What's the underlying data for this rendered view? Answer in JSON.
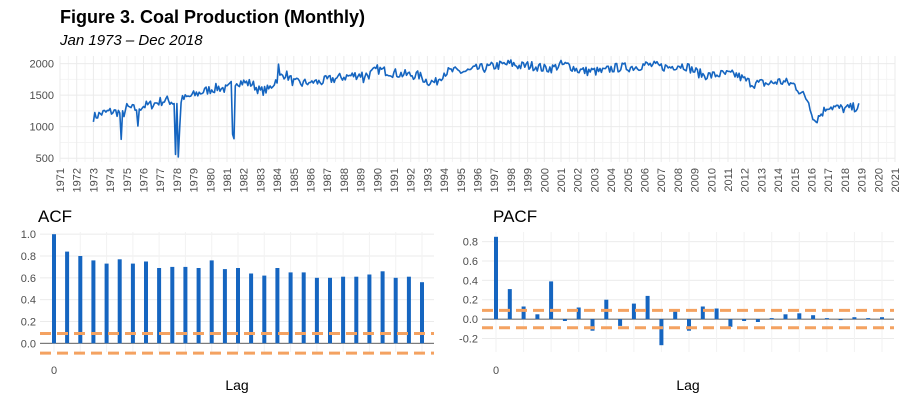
{
  "header": {
    "title": "Figure 3. Coal Production (Monthly)",
    "subtitle": "Jan 1973 – Dec 2018"
  },
  "colors": {
    "series": "#1565c0",
    "ci": "#f4a261",
    "grid": "#ebebeb",
    "axis_text": "#4d4d4d"
  },
  "chart_data": [
    {
      "type": "line",
      "title": "",
      "xlabel": "",
      "ylabel": "",
      "xlim": [
        1971,
        2021
      ],
      "ylim": [
        440,
        2120
      ],
      "x_ticks": [
        "1971",
        "1972",
        "1973",
        "1974",
        "1975",
        "1976",
        "1977",
        "1978",
        "1979",
        "1980",
        "1981",
        "1982",
        "1983",
        "1984",
        "1985",
        "1986",
        "1987",
        "1988",
        "1989",
        "1990",
        "1991",
        "1992",
        "1993",
        "1994",
        "1995",
        "1996",
        "1997",
        "1998",
        "1999",
        "2000",
        "2001",
        "2002",
        "2003",
        "2004",
        "2005",
        "2006",
        "2007",
        "2008",
        "2009",
        "2010",
        "2011",
        "2012",
        "2013",
        "2014",
        "2015",
        "2016",
        "2017",
        "2018",
        "2019",
        "2020",
        "2021"
      ],
      "y_ticks": [
        500,
        1000,
        1500,
        2000
      ],
      "grid": true,
      "x_start": 1973.0,
      "x_end": 2018.9,
      "anchors": [
        [
          1973.0,
          1150
        ],
        [
          1973.5,
          1210
        ],
        [
          1974.0,
          1240
        ],
        [
          1974.5,
          1230
        ],
        [
          1974.8,
          1200
        ],
        [
          1975.0,
          1300
        ],
        [
          1975.5,
          1280
        ],
        [
          1976.0,
          1330
        ],
        [
          1976.5,
          1350
        ],
        [
          1977.0,
          1400
        ],
        [
          1977.4,
          1420
        ],
        [
          1977.9,
          1380
        ],
        [
          1978.5,
          1450
        ],
        [
          1979.0,
          1500
        ],
        [
          1979.5,
          1550
        ],
        [
          1980.0,
          1590
        ],
        [
          1980.5,
          1620
        ],
        [
          1981.0,
          1590
        ],
        [
          1981.5,
          1720
        ],
        [
          1982.0,
          1700
        ],
        [
          1982.5,
          1680
        ],
        [
          1983.0,
          1560
        ],
        [
          1983.5,
          1590
        ],
        [
          1984.0,
          1760
        ],
        [
          1984.5,
          1840
        ],
        [
          1985.0,
          1700
        ],
        [
          1985.5,
          1680
        ],
        [
          1986.0,
          1720
        ],
        [
          1986.5,
          1700
        ],
        [
          1987.0,
          1740
        ],
        [
          1987.5,
          1760
        ],
        [
          1988.0,
          1790
        ],
        [
          1988.5,
          1810
        ],
        [
          1989.0,
          1830
        ],
        [
          1989.5,
          1820
        ],
        [
          1990.0,
          1910
        ],
        [
          1990.5,
          1880
        ],
        [
          1991.0,
          1850
        ],
        [
          1991.5,
          1830
        ],
        [
          1992.0,
          1820
        ],
        [
          1992.5,
          1810
        ],
        [
          1993.0,
          1720
        ],
        [
          1993.5,
          1700
        ],
        [
          1994.0,
          1860
        ],
        [
          1994.5,
          1880
        ],
        [
          1995.0,
          1870
        ],
        [
          1995.5,
          1880
        ],
        [
          1996.0,
          1920
        ],
        [
          1996.5,
          1930
        ],
        [
          1997.0,
          1960
        ],
        [
          1997.5,
          1980
        ],
        [
          1998.0,
          2000
        ],
        [
          1998.5,
          1960
        ],
        [
          1999.0,
          1970
        ],
        [
          1999.5,
          1960
        ],
        [
          2000.0,
          1920
        ],
        [
          2000.5,
          1930
        ],
        [
          2001.0,
          1980
        ],
        [
          2001.5,
          1970
        ],
        [
          2002.0,
          1900
        ],
        [
          2002.5,
          1880
        ],
        [
          2003.0,
          1880
        ],
        [
          2003.5,
          1870
        ],
        [
          2004.0,
          1920
        ],
        [
          2004.5,
          1940
        ],
        [
          2005.0,
          1940
        ],
        [
          2005.5,
          1950
        ],
        [
          2006.0,
          1980
        ],
        [
          2006.5,
          1970
        ],
        [
          2007.0,
          1950
        ],
        [
          2007.5,
          1940
        ],
        [
          2008.0,
          1980
        ],
        [
          2008.5,
          1960
        ],
        [
          2009.0,
          1880
        ],
        [
          2009.5,
          1820
        ],
        [
          2010.0,
          1810
        ],
        [
          2010.5,
          1830
        ],
        [
          2011.0,
          1830
        ],
        [
          2011.5,
          1820
        ],
        [
          2012.0,
          1740
        ],
        [
          2012.5,
          1680
        ],
        [
          2013.0,
          1690
        ],
        [
          2013.5,
          1680
        ],
        [
          2014.0,
          1720
        ],
        [
          2014.5,
          1700
        ],
        [
          2015.0,
          1660
        ],
        [
          2015.5,
          1500
        ],
        [
          2015.8,
          1420
        ],
        [
          2016.2,
          1080
        ],
        [
          2016.5,
          1180
        ],
        [
          2017.0,
          1330
        ],
        [
          2017.5,
          1300
        ],
        [
          2018.0,
          1280
        ],
        [
          2018.9,
          1320
        ]
      ],
      "spikes": [
        [
          1974.65,
          800
        ],
        [
          1975.7,
          1010
        ],
        [
          1977.9,
          560
        ],
        [
          1978.05,
          520
        ],
        [
          1978.2,
          980
        ],
        [
          1981.3,
          880
        ],
        [
          1981.45,
          810
        ],
        [
          1984.1,
          1990
        ],
        [
          1986.0,
          1700
        ],
        [
          1989.2,
          1700
        ]
      ]
    },
    {
      "type": "bar",
      "title": "ACF",
      "xlabel": "Lag",
      "ylabel": "",
      "x_ticks": [
        "0"
      ],
      "y_ticks": [
        "0.0",
        "0.2",
        "0.4",
        "0.6",
        "0.8",
        "1.0"
      ],
      "ylim": [
        -0.08,
        1.02
      ],
      "ci": 0.09,
      "grid": true,
      "values": [
        1.0,
        0.84,
        0.8,
        0.76,
        0.73,
        0.77,
        0.73,
        0.75,
        0.69,
        0.7,
        0.7,
        0.69,
        0.76,
        0.68,
        0.69,
        0.64,
        0.62,
        0.69,
        0.65,
        0.65,
        0.6,
        0.6,
        0.61,
        0.61,
        0.63,
        0.66,
        0.6,
        0.61,
        0.56
      ]
    },
    {
      "type": "bar",
      "title": "PACF",
      "xlabel": "Lag",
      "ylabel": "",
      "x_ticks": [
        "0"
      ],
      "y_ticks": [
        "-0.2",
        "0.0",
        "0.2",
        "0.4",
        "0.6",
        "0.8"
      ],
      "ylim": [
        -0.34,
        0.9
      ],
      "ci": 0.09,
      "grid": true,
      "values": [
        0.85,
        0.31,
        0.13,
        0.05,
        0.39,
        -0.02,
        0.12,
        -0.12,
        0.2,
        -0.07,
        0.16,
        0.24,
        -0.27,
        0.08,
        -0.12,
        0.13,
        0.11,
        -0.08,
        -0.02,
        -0.03,
        0.01,
        0.05,
        0.06,
        0.04,
        0.01,
        0.0,
        0.02,
        0.01,
        0.02
      ]
    }
  ]
}
